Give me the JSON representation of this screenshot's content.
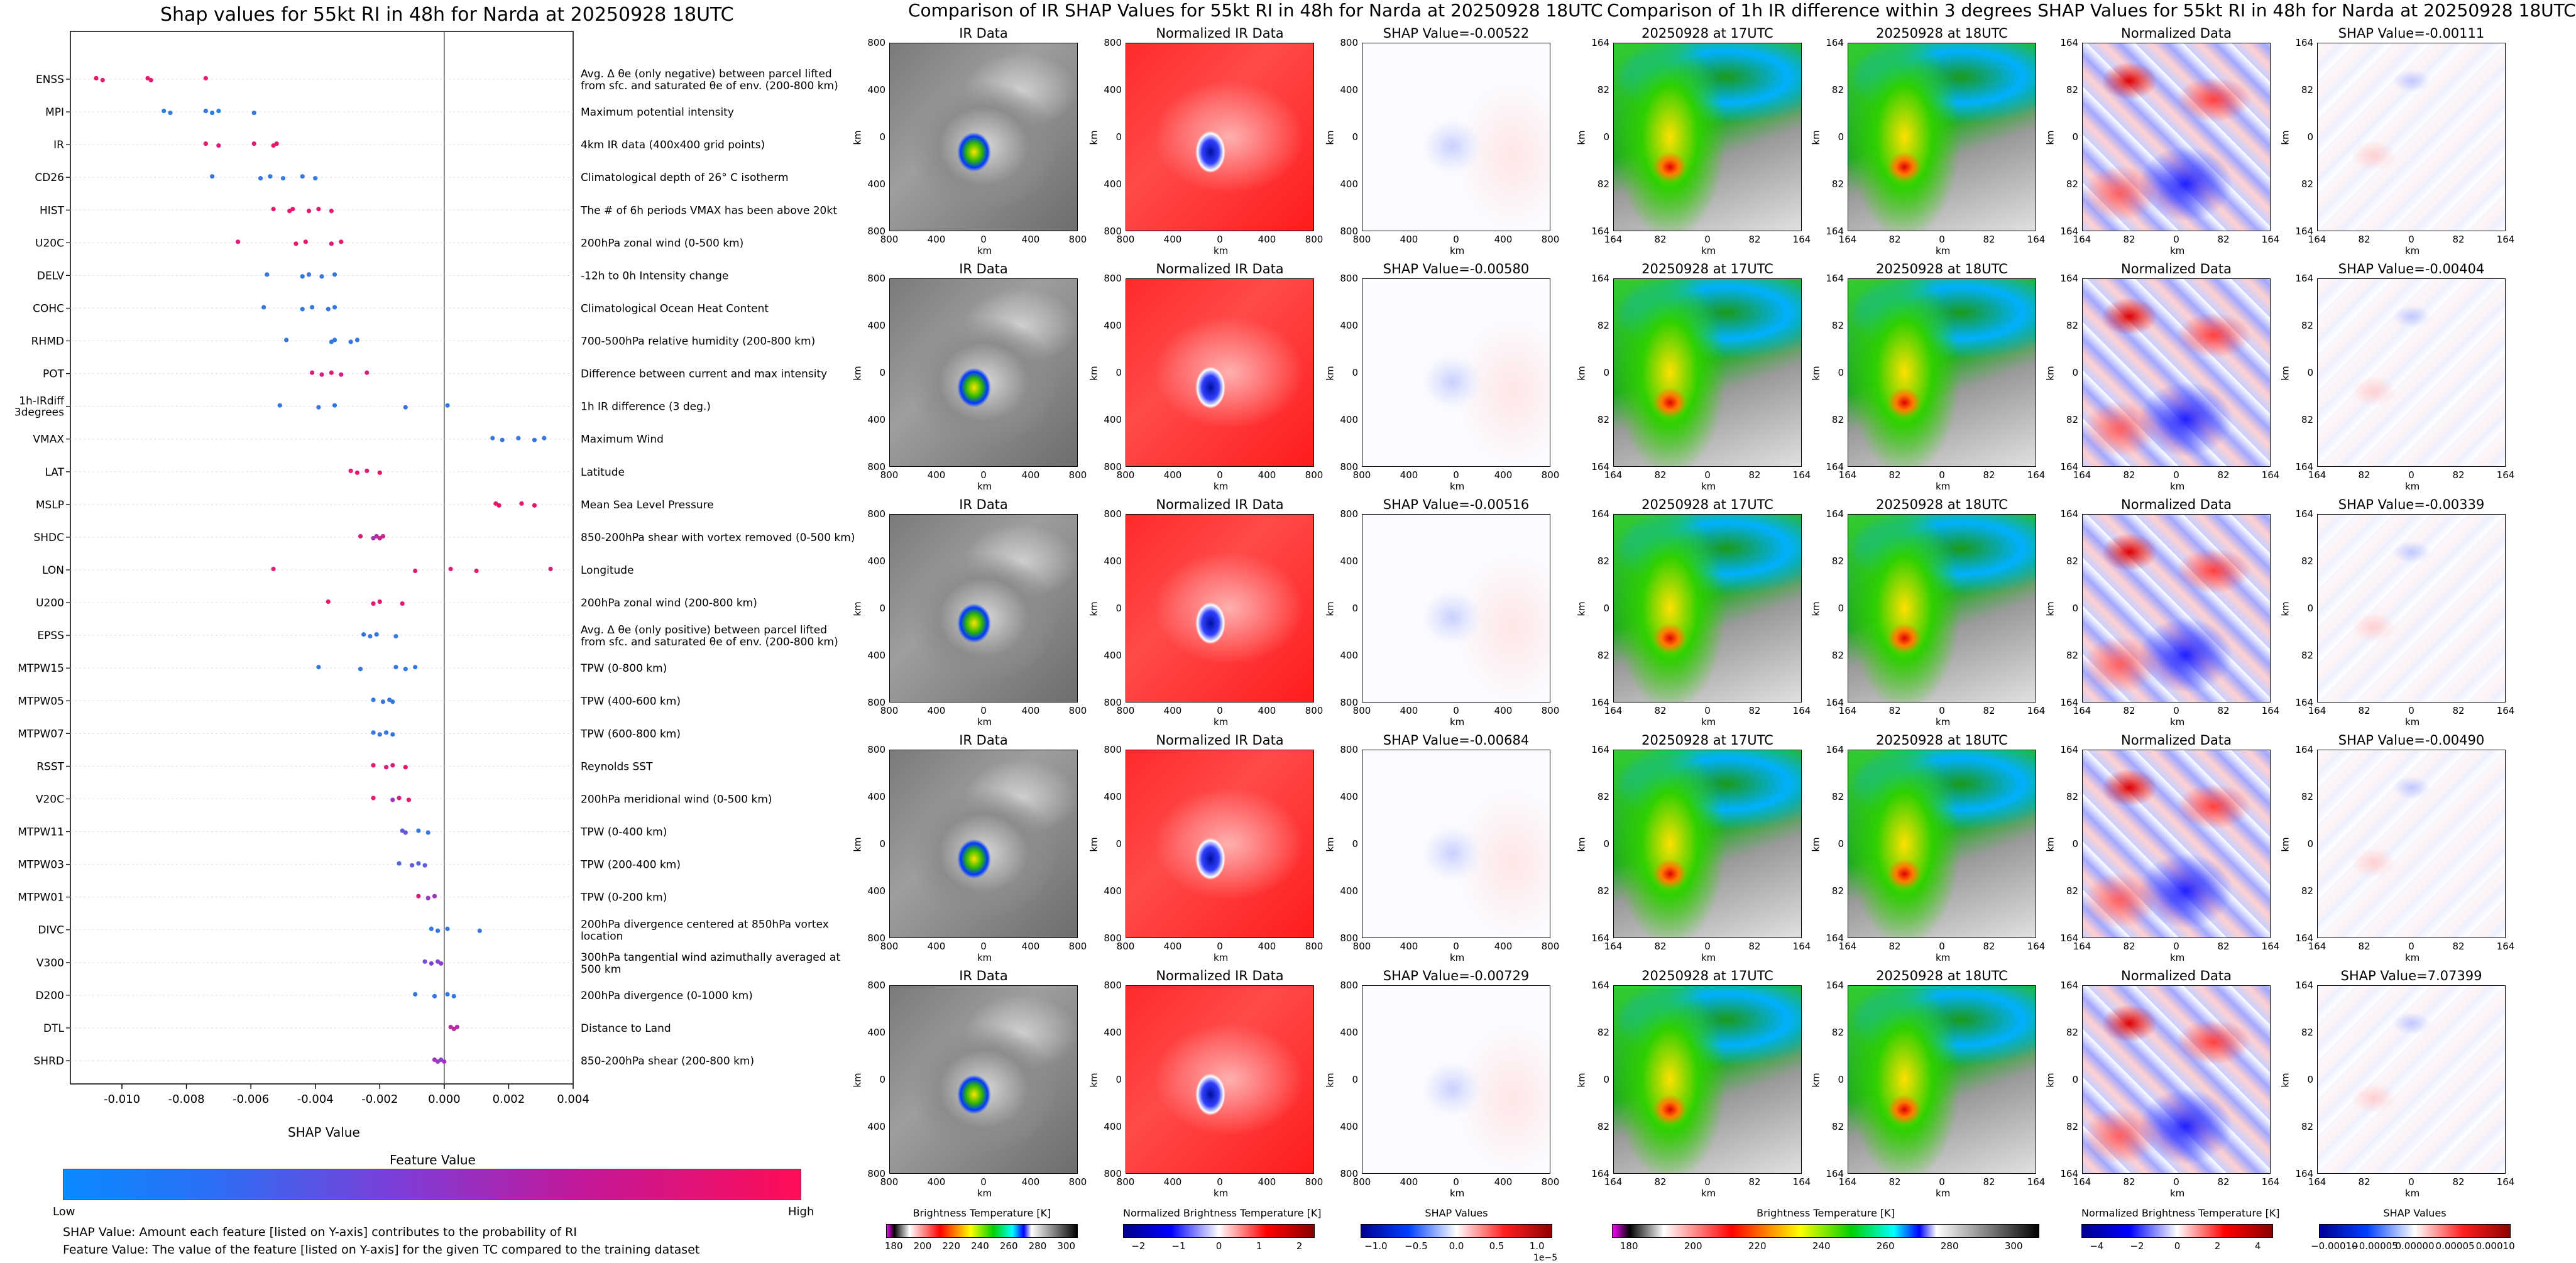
{
  "chart_data": {
    "type": "scatter",
    "title": "Shap values for 55kt RI in 48h for Narda at 20250928 18UTC",
    "xlabel": "SHAP Value",
    "xlim": [
      -0.0116,
      0.004
    ],
    "xticks": [
      "-0.010",
      "-0.008",
      "-0.006",
      "-0.004",
      "-0.002",
      "0.000",
      "0.002",
      "0.004"
    ],
    "xtick_values": [
      -0.01,
      -0.008,
      -0.006,
      -0.004,
      -0.002,
      0.0,
      0.002,
      0.004
    ],
    "features": [
      {
        "name": "ENSS",
        "desc": "Avg. Δ θe (only negative) between parcel lifted from sfc. and saturated θe of env. (200-800 km)",
        "shap": [
          -0.0108,
          -0.0106,
          -0.0092,
          -0.0091,
          -0.0074
        ],
        "value": [
          0.95,
          0.9,
          0.92,
          0.88,
          0.9
        ]
      },
      {
        "name": "MPI",
        "desc": "Maximum potential intensity",
        "shap": [
          -0.0087,
          -0.0085,
          -0.0074,
          -0.0072,
          -0.007,
          -0.0059
        ],
        "value": [
          0.05,
          0.08,
          0.1,
          0.06,
          0.05,
          0.1
        ]
      },
      {
        "name": "IR",
        "desc": "4km IR data (400x400 grid points)",
        "shap": [
          -0.0074,
          -0.007,
          -0.0059,
          -0.0053,
          -0.0052
        ],
        "value": [
          0.9,
          0.85,
          0.88,
          0.92,
          0.9
        ]
      },
      {
        "name": "CD26",
        "desc": "Climatological depth of 26° C isotherm",
        "shap": [
          -0.0072,
          -0.0057,
          -0.0054,
          -0.005,
          -0.0044,
          -0.004
        ],
        "value": [
          0.1,
          0.1,
          0.08,
          0.1,
          0.12,
          0.1
        ]
      },
      {
        "name": "HIST",
        "desc": "The # of 6h periods VMAX has been above 20kt",
        "shap": [
          -0.0053,
          -0.0048,
          -0.0047,
          -0.0042,
          -0.0039,
          -0.0035
        ],
        "value": [
          0.9,
          0.95,
          0.88,
          0.92,
          0.9,
          0.9
        ]
      },
      {
        "name": "U20C",
        "desc": "200hPa zonal wind (0-500 km)",
        "shap": [
          -0.0064,
          -0.0046,
          -0.0043,
          -0.0035,
          -0.0032
        ],
        "value": [
          0.85,
          0.88,
          0.9,
          0.86,
          0.9
        ]
      },
      {
        "name": "DELV",
        "desc": "-12h to 0h Intensity change",
        "shap": [
          -0.0055,
          -0.0044,
          -0.0042,
          -0.0038,
          -0.0034
        ],
        "value": [
          0.1,
          0.1,
          0.12,
          0.1,
          0.1
        ]
      },
      {
        "name": "COHC",
        "desc": "Climatological Ocean Heat Content",
        "shap": [
          -0.0056,
          -0.0044,
          -0.0041,
          -0.0036,
          -0.0034
        ],
        "value": [
          0.12,
          0.1,
          0.1,
          0.12,
          0.1
        ]
      },
      {
        "name": "RHMD",
        "desc": "700-500hPa relative humidity (200-800 km)",
        "shap": [
          -0.0049,
          -0.0035,
          -0.0034,
          -0.0029,
          -0.0027
        ],
        "value": [
          0.1,
          0.1,
          0.1,
          0.1,
          0.12
        ]
      },
      {
        "name": "POT",
        "desc": "Difference between current and max intensity",
        "shap": [
          -0.0041,
          -0.0038,
          -0.0035,
          -0.0032,
          -0.0024
        ],
        "value": [
          0.85,
          0.82,
          0.88,
          0.8,
          0.86
        ]
      },
      {
        "name": "1h-IRdiff\n3degrees",
        "desc": "1h IR difference (3 deg.)",
        "shap": [
          -0.0051,
          -0.0039,
          -0.0034,
          -0.0012,
          0.0001
        ],
        "value": [
          0.1,
          0.12,
          0.1,
          0.15,
          0.1
        ]
      },
      {
        "name": "VMAX",
        "desc": "Maximum Wind",
        "shap": [
          0.0015,
          0.0018,
          0.0023,
          0.0028,
          0.0031
        ],
        "value": [
          0.1,
          0.1,
          0.12,
          0.1,
          0.1
        ]
      },
      {
        "name": "LAT",
        "desc": "Latitude",
        "shap": [
          -0.0029,
          -0.0027,
          -0.0024,
          -0.002
        ],
        "value": [
          0.88,
          0.9,
          0.86,
          0.9
        ]
      },
      {
        "name": "MSLP",
        "desc": "Mean Sea Level Pressure",
        "shap": [
          0.0016,
          0.0017,
          0.0024,
          0.0028
        ],
        "value": [
          0.9,
          0.92,
          0.88,
          0.9
        ]
      },
      {
        "name": "SHDC",
        "desc": "850-200hPa shear with vortex removed (0-500 km)",
        "shap": [
          -0.0026,
          -0.0022,
          -0.0021,
          -0.002,
          -0.0019
        ],
        "value": [
          0.85,
          0.6,
          0.7,
          0.8,
          0.75
        ]
      },
      {
        "name": "LON",
        "desc": "Longitude",
        "shap": [
          -0.0053,
          -0.0009,
          0.0002,
          0.001,
          0.0033
        ],
        "value": [
          0.88,
          0.9,
          0.86,
          0.92,
          0.9
        ]
      },
      {
        "name": "U200",
        "desc": "200hPa zonal wind (200-800 km)",
        "shap": [
          -0.0036,
          -0.0022,
          -0.002,
          -0.0013
        ],
        "value": [
          0.9,
          0.88,
          0.85,
          0.9
        ]
      },
      {
        "name": "EPSS",
        "desc": "Avg. Δ θe (only positive) between parcel lifted from sfc. and saturated θe of env. (200-800 km)",
        "shap": [
          -0.0025,
          -0.0023,
          -0.0021,
          -0.0015
        ],
        "value": [
          0.1,
          0.12,
          0.1,
          0.1
        ]
      },
      {
        "name": "MTPW15",
        "desc": "TPW (0-800 km)",
        "shap": [
          -0.0039,
          -0.0026,
          -0.0015,
          -0.0012,
          -0.0009
        ],
        "value": [
          0.1,
          0.1,
          0.12,
          0.1,
          0.1
        ]
      },
      {
        "name": "MTPW05",
        "desc": "TPW (400-600 km)",
        "shap": [
          -0.0022,
          -0.0019,
          -0.0017,
          -0.0016
        ],
        "value": [
          0.1,
          0.12,
          0.1,
          0.1
        ]
      },
      {
        "name": "MTPW07",
        "desc": "TPW (600-800 km)",
        "shap": [
          -0.0022,
          -0.002,
          -0.0018,
          -0.0016
        ],
        "value": [
          0.1,
          0.12,
          0.1,
          0.1
        ]
      },
      {
        "name": "RSST",
        "desc": "Reynolds SST",
        "shap": [
          -0.0022,
          -0.0018,
          -0.0016,
          -0.0012
        ],
        "value": [
          0.9,
          0.85,
          0.88,
          0.9
        ]
      },
      {
        "name": "V20C",
        "desc": "200hPa meridional wind (0-500 km)",
        "shap": [
          -0.0022,
          -0.0016,
          -0.0014,
          -0.0011
        ],
        "value": [
          0.9,
          0.6,
          0.85,
          0.9
        ]
      },
      {
        "name": "MTPW11",
        "desc": "TPW (0-400 km)",
        "shap": [
          -0.0013,
          -0.0012,
          -0.0008,
          -0.0005
        ],
        "value": [
          0.3,
          0.35,
          0.1,
          0.12
        ]
      },
      {
        "name": "MTPW03",
        "desc": "TPW (200-400 km)",
        "shap": [
          -0.0014,
          -0.001,
          -0.0008,
          -0.0006
        ],
        "value": [
          0.2,
          0.3,
          0.25,
          0.3
        ]
      },
      {
        "name": "MTPW01",
        "desc": "TPW (0-200 km)",
        "shap": [
          -0.0008,
          -0.0005,
          -0.0003
        ],
        "value": [
          0.85,
          0.55,
          0.6
        ]
      },
      {
        "name": "DIVC",
        "desc": "200hPa divergence centered at 850hPa vortex location",
        "shap": [
          -0.0004,
          -0.0002,
          0.0001,
          0.0011
        ],
        "value": [
          0.1,
          0.12,
          0.1,
          0.1
        ]
      },
      {
        "name": "V300",
        "desc": "300hPa tangential wind azimuthally averaged at 500 km",
        "shap": [
          -0.0006,
          -0.0004,
          -0.0002,
          -0.0001
        ],
        "value": [
          0.4,
          0.5,
          0.45,
          0.5
        ]
      },
      {
        "name": "D200",
        "desc": "200hPa divergence (0-1000 km)",
        "shap": [
          -0.0009,
          -0.0003,
          0.0001,
          0.0003
        ],
        "value": [
          0.1,
          0.12,
          0.1,
          0.1
        ]
      },
      {
        "name": "DTL",
        "desc": "Distance to Land",
        "shap": [
          0.0002,
          0.0003,
          0.0004
        ],
        "value": [
          0.7,
          0.72,
          0.68
        ]
      },
      {
        "name": "SHRD",
        "desc": "850-200hPa shear (200-800 km)",
        "shap": [
          -0.0003,
          -0.0002,
          -0.0001,
          0.0
        ],
        "value": [
          0.6,
          0.55,
          0.5,
          0.6
        ]
      }
    ]
  },
  "legend": {
    "title": "Feature Value",
    "low": "Low",
    "high": "High",
    "colors": {
      "low": "#1e88e5",
      "mid": "#8a3fd1",
      "high": "#ff0d57"
    }
  },
  "footnotes": {
    "line1": "SHAP Value: Amount each feature [listed on Y-axis] contributes to the probability of RI",
    "line2": "Feature Value: The value of the feature [listed on Y-axis] for the given TC compared to the training dataset"
  },
  "ir_section": {
    "title": "Comparison of IR SHAP Values for 55kt RI in 48h for Narda at 20250928 18UTC",
    "col_titles": [
      "IR Data",
      "Normalized IR Data"
    ],
    "shap_titles": [
      "SHAP Value=-0.00522",
      "SHAP Value=-0.00580",
      "SHAP Value=-0.00516",
      "SHAP Value=-0.00684",
      "SHAP Value=-0.00729"
    ],
    "ticks": [
      "800",
      "400",
      "0",
      "400",
      "800"
    ],
    "unit": "km",
    "colorbars": [
      {
        "label": "Brightness Temperature [K]",
        "ticks": [
          "180",
          "200",
          "220",
          "240",
          "260",
          "280",
          "300"
        ]
      },
      {
        "label": "Normalized Brightness Temperature [K]",
        "ticks": [
          "−2",
          "−1",
          "0",
          "1",
          "2"
        ]
      },
      {
        "label": "SHAP Values",
        "ticks": [
          "−1.0",
          "−0.5",
          "0.0",
          "0.5",
          "1.0"
        ],
        "offset": "1e−5"
      }
    ]
  },
  "diff_section": {
    "title": "Comparison of 1h IR difference within 3 degrees SHAP Values for 55kt RI in 48h for Narda at 20250928 18UTC",
    "col_titles": [
      "20250928 at 17UTC",
      "20250928 at 18UTC",
      "Normalized Data"
    ],
    "shap_titles": [
      "SHAP Value=-0.00111",
      "SHAP Value=-0.00404",
      "SHAP Value=-0.00339",
      "SHAP Value=-0.00490",
      "SHAP Value=7.07399"
    ],
    "ticks": [
      "164",
      "82",
      "0",
      "82",
      "164"
    ],
    "unit": "km",
    "colorbars": [
      {
        "label": "Brightness Temperature [K]",
        "ticks": [
          "180",
          "200",
          "220",
          "240",
          "260",
          "280",
          "300"
        ]
      },
      {
        "label": "Normalized Brightness Temperature [K]",
        "ticks": [
          "−4",
          "−2",
          "0",
          "2",
          "4"
        ]
      },
      {
        "label": "SHAP Values",
        "ticks": [
          "−0.00010",
          "−0.00005",
          "0.00000",
          "0.00005",
          "0.00010"
        ]
      }
    ]
  }
}
